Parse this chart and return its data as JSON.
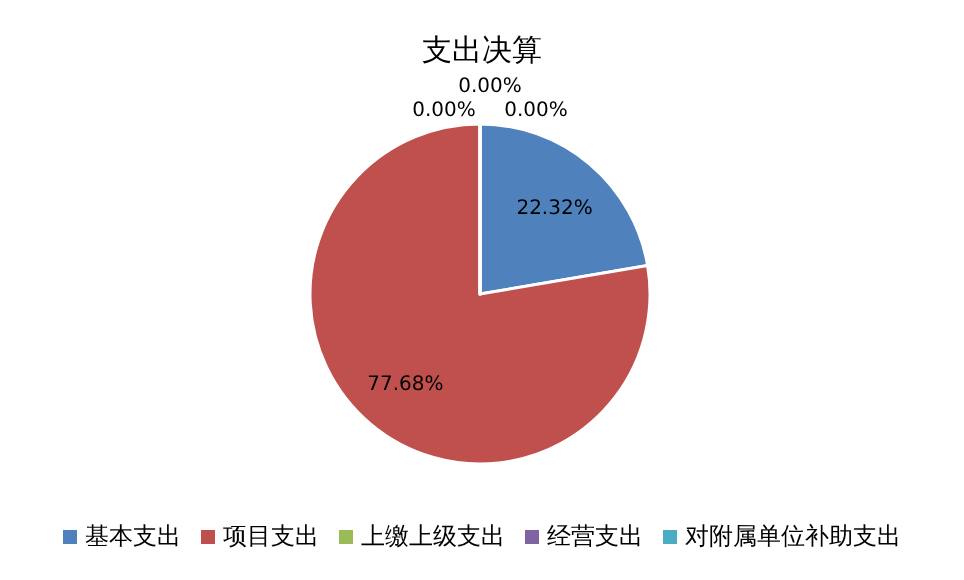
{
  "chart_data": {
    "type": "pie",
    "title": "支出决算",
    "categories": [
      "基本支出",
      "项目支出",
      "上缴上级支出",
      "经营支出",
      "对附属单位补助支出"
    ],
    "values": [
      22.32,
      77.68,
      0,
      0,
      0
    ],
    "colors": [
      "#4f81bd",
      "#c0504d",
      "#9bbb59",
      "#8064a2",
      "#4bacc6"
    ],
    "value_labels": [
      "22.32%",
      "77.68%",
      "0.00%",
      "0.00%",
      "0.00%"
    ],
    "legend": "bottom"
  }
}
